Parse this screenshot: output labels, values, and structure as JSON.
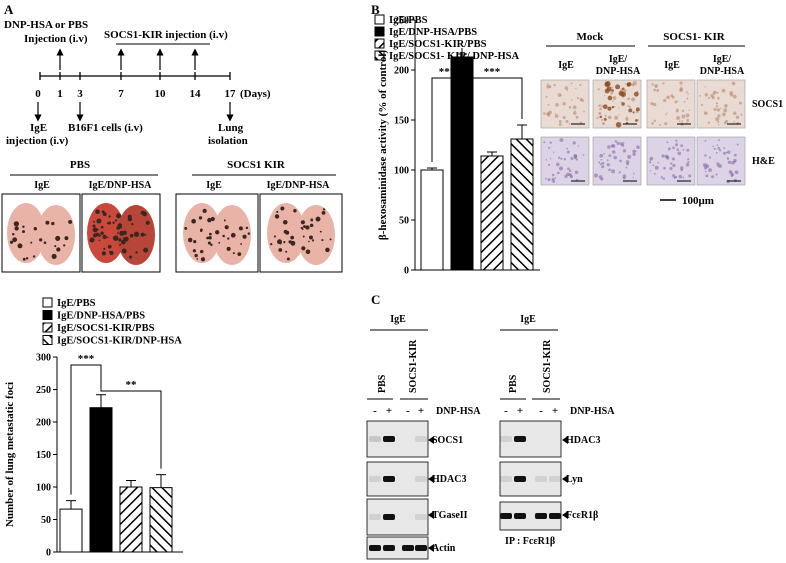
{
  "panels": {
    "a": "A",
    "b": "B",
    "c": "C"
  },
  "colors": {
    "tissue_pink": "#e9b3a8",
    "tissue_dark": "#3b2620",
    "ihc_bg": "#e9dbd4",
    "he_bg": "#ddd3e6",
    "blot_bg": "#e7e7e7",
    "band": "#111111"
  },
  "timeline": {
    "top_left_line1": "DNP-HSA  or PBS",
    "top_left_line2": "Injection  (i.v)",
    "socs_label": "SOCS1-KIR  injection (i.v)",
    "ticks": [
      "0",
      "1",
      "3",
      "7",
      "10",
      "14",
      "17"
    ],
    "days_label": "(Days)",
    "ige_line1": "IgE",
    "ige_line2": "injection  (i.v)",
    "b16_label": "B16F1 cells (i.v)",
    "lung_line1": "Lung",
    "lung_line2": "isolation"
  },
  "lungs": {
    "pbs_header": "PBS",
    "kir_header": "SOCS1 KIR",
    "col_labels": [
      "IgE",
      "IgE/DNP-HSA",
      "IgE",
      "IgE/DNP-HSA"
    ]
  },
  "histology": {
    "mock": "Mock",
    "kir": "SOCS1- KIR",
    "col_ige": "IgE",
    "col_dnp1": "IgE/",
    "col_dnp2": "DNP-HSA",
    "row1": "SOCS1",
    "row2": "H&E",
    "scale": "100μm"
  },
  "blot": {
    "ige": "IgE",
    "pbs": "PBS",
    "kir": "SOCS1-KIR",
    "dnp": "DNP-HSA",
    "signs": [
      "-",
      "+",
      "-",
      "+"
    ],
    "left_rows": [
      "SOCS1",
      "HDAC3",
      "TGaseII",
      "Actin"
    ],
    "right_rows": [
      "HDAC3",
      "Lyn",
      "FcεR1β"
    ],
    "ip": "IP  : FcεR1β"
  },
  "chart_data": [
    {
      "type": "bar",
      "id": "metastatic-foci",
      "legend": [
        "IgE/PBS",
        "IgE/DNP-HSA/PBS",
        "IgE/SOCS1-KIR/PBS",
        "IgE/SOCS1-KIR/DNP-HSA"
      ],
      "values": [
        66,
        222,
        100,
        99
      ],
      "errors": [
        13,
        20,
        10,
        20
      ],
      "fills": [
        "white",
        "black",
        "hatch-back",
        "hatch-fwd"
      ],
      "ylabel": "Number of lung metastatic foci",
      "ylim": [
        0,
        300
      ],
      "yticks": [
        0,
        50,
        100,
        150,
        200,
        250,
        300
      ],
      "significance": [
        {
          "from": 0,
          "to": 1,
          "label": "***"
        },
        {
          "from": 1,
          "to": 3,
          "label": "**"
        }
      ]
    },
    {
      "type": "bar",
      "id": "hexosaminidase",
      "legend": [
        "IgE/PBS",
        "IgE/DNP-HSA/PBS",
        "IgE/SOCS1-KIR/PBS",
        "IgE/SOCS1- KIR/ DNP-HSA"
      ],
      "values": [
        100,
        213,
        114,
        131
      ],
      "errors": [
        2,
        3,
        4,
        14
      ],
      "fills": [
        "white",
        "black",
        "hatch-back",
        "hatch-fwd"
      ],
      "ylabel": "β-hexosaminidase activity  (% of control)",
      "ylim": [
        0,
        250
      ],
      "yticks": [
        0,
        50,
        100,
        150,
        200,
        250
      ],
      "significance": [
        {
          "from": 0,
          "to": 1,
          "label": "***"
        },
        {
          "from": 1,
          "to": 3,
          "label": "***"
        }
      ]
    }
  ]
}
